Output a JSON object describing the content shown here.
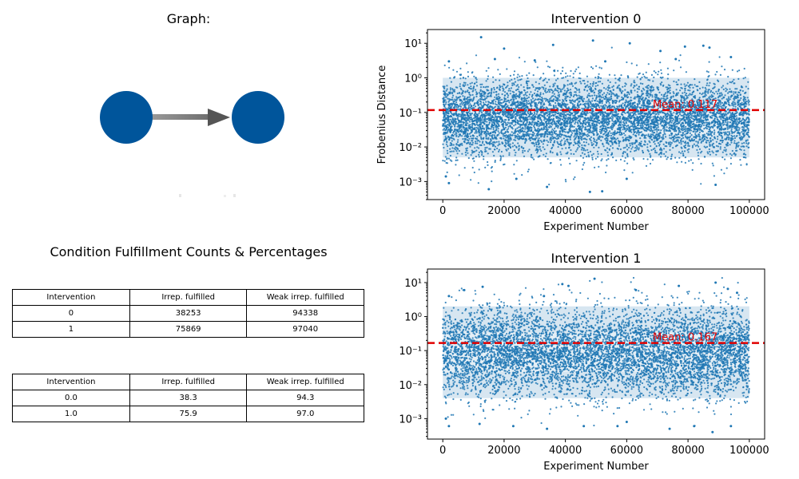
{
  "graph_panel": {
    "title": "Graph:"
  },
  "table_panel": {
    "title": "Condition Fulfillment Counts & Percentages",
    "counts_table": {
      "headers": [
        "Intervention",
        "Irrep. fulfilled",
        "Weak irrep. fulfilled"
      ],
      "rows": [
        [
          "0",
          "38253",
          "94338"
        ],
        [
          "1",
          "75869",
          "97040"
        ]
      ]
    },
    "percent_table": {
      "headers": [
        "Intervention",
        "Irrep. fulfilled",
        "Weak irrep. fulfilled"
      ],
      "rows": [
        [
          "0.0",
          "38.3",
          "94.3"
        ],
        [
          "1.0",
          "75.9",
          "97.0"
        ]
      ]
    }
  },
  "colors": {
    "node": "#00559b",
    "points": "#1f77b4",
    "mean_line": "#e00000",
    "mean_text": "#e00000"
  },
  "chart_data": [
    {
      "type": "scatter",
      "title": "Intervention 0",
      "xlabel": "Experiment Number",
      "ylabel": "Frobenius Distance",
      "yscale": "log",
      "xlim": [
        -5000,
        105000
      ],
      "ylim": [
        0.0003,
        25
      ],
      "xticks": [
        0,
        20000,
        40000,
        60000,
        80000,
        100000
      ],
      "xtick_labels": [
        "0",
        "20000",
        "40000",
        "60000",
        "80000",
        "100000"
      ],
      "yticks": [
        0.001,
        0.01,
        0.1,
        1,
        10
      ],
      "ytick_labels": [
        "10⁻³",
        "10⁻²",
        "10⁻¹",
        "10⁰",
        "10¹"
      ],
      "mean": 0.117,
      "mean_label": "Mean: 0.117",
      "n_points": 100000,
      "band": {
        "dense_low": 0.005,
        "dense_high": 1.0
      },
      "outliers": [
        [
          12500,
          15
        ],
        [
          49000,
          12
        ],
        [
          61000,
          10
        ],
        [
          36000,
          9
        ],
        [
          79000,
          8
        ],
        [
          85000,
          8.5
        ],
        [
          87000,
          7.5
        ],
        [
          71000,
          6
        ],
        [
          20000,
          7
        ],
        [
          94000,
          4
        ],
        [
          17000,
          3.5
        ],
        [
          76000,
          3.5
        ],
        [
          2000,
          3
        ],
        [
          30000,
          3.2
        ],
        [
          53000,
          3.0
        ],
        [
          15000,
          0.0006
        ],
        [
          48000,
          0.0005
        ],
        [
          52000,
          0.00052
        ],
        [
          34000,
          0.0007
        ],
        [
          89000,
          0.0008
        ],
        [
          2000,
          0.0009
        ],
        [
          1000,
          0.0014
        ],
        [
          24000,
          0.0012
        ],
        [
          60000,
          0.0012
        ]
      ]
    },
    {
      "type": "scatter",
      "title": "Intervention 1",
      "xlabel": "Experiment Number",
      "ylabel": "",
      "yscale": "log",
      "xlim": [
        -5000,
        105000
      ],
      "ylim": [
        0.00025,
        25
      ],
      "xticks": [
        0,
        20000,
        40000,
        60000,
        80000,
        100000
      ],
      "xtick_labels": [
        "0",
        "20000",
        "40000",
        "60000",
        "80000",
        "100000"
      ],
      "yticks": [
        0.001,
        0.01,
        0.1,
        1,
        10
      ],
      "ytick_labels": [
        "10⁻³",
        "10⁻²",
        "10⁻¹",
        "10⁰",
        "10¹"
      ],
      "mean": 0.167,
      "mean_label": "Mean: 0.167",
      "n_points": 100000,
      "band": {
        "dense_low": 0.004,
        "dense_high": 2.0
      },
      "outliers": [
        [
          49500,
          13
        ],
        [
          89000,
          10
        ],
        [
          39000,
          9
        ],
        [
          13000,
          7.5
        ],
        [
          41000,
          8
        ],
        [
          77000,
          8
        ],
        [
          63000,
          6
        ],
        [
          7000,
          6
        ],
        [
          93000,
          6.5
        ],
        [
          2000,
          4
        ],
        [
          33000,
          4
        ],
        [
          96000,
          5
        ],
        [
          1000,
          0.001
        ],
        [
          2000,
          0.0006
        ],
        [
          12000,
          0.0007
        ],
        [
          23000,
          0.0006
        ],
        [
          34000,
          0.0005
        ],
        [
          46000,
          0.0006
        ],
        [
          57000,
          0.0006
        ],
        [
          74000,
          0.0005
        ],
        [
          82000,
          0.0006
        ],
        [
          88000,
          0.0004
        ],
        [
          94000,
          0.0006
        ],
        [
          60000,
          0.0008
        ]
      ]
    }
  ]
}
